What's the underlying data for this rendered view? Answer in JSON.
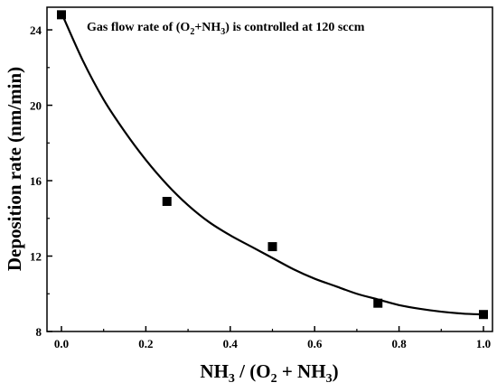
{
  "chart_data": {
    "type": "scatter",
    "annotation": {
      "prefix": "Gas flow rate of (O",
      "sub1": "2",
      "mid": "+NH",
      "sub2": "3",
      "suffix": ") is controlled at 120 sccm"
    },
    "ylabel": "Deposition rate (nm/min)",
    "xlabel": {
      "part1": "NH",
      "sub1": "3",
      "part2": " / (O",
      "sub2": "2",
      "part3": " + NH",
      "sub3": "3",
      "part4": ")"
    },
    "xlim": [
      0.0,
      1.0
    ],
    "ylim": [
      8,
      25.2
    ],
    "xticks": [
      "0.0",
      "0.2",
      "0.4",
      "0.6",
      "0.8",
      "1.0"
    ],
    "yticks": [
      "8",
      "12",
      "16",
      "20",
      "24"
    ],
    "series": [
      {
        "marker": "square",
        "x": [
          0.0,
          0.25,
          0.5,
          0.75,
          1.0
        ],
        "y": [
          24.8,
          14.9,
          12.5,
          9.5,
          8.9
        ]
      }
    ],
    "fit_curve": {
      "x": [
        0.0,
        0.05,
        0.1,
        0.15,
        0.2,
        0.25,
        0.3,
        0.35,
        0.4,
        0.45,
        0.5,
        0.55,
        0.6,
        0.65,
        0.7,
        0.75,
        0.8,
        0.85,
        0.9,
        0.95,
        1.0
      ],
      "y": [
        24.9,
        22.4,
        20.3,
        18.6,
        17.1,
        15.8,
        14.7,
        13.8,
        13.1,
        12.5,
        11.9,
        11.3,
        10.8,
        10.4,
        10.0,
        9.7,
        9.4,
        9.2,
        9.05,
        8.95,
        8.9
      ]
    },
    "colors": {
      "marker": "#000000",
      "line": "#000000",
      "axes": "#000000"
    },
    "grid": false
  }
}
